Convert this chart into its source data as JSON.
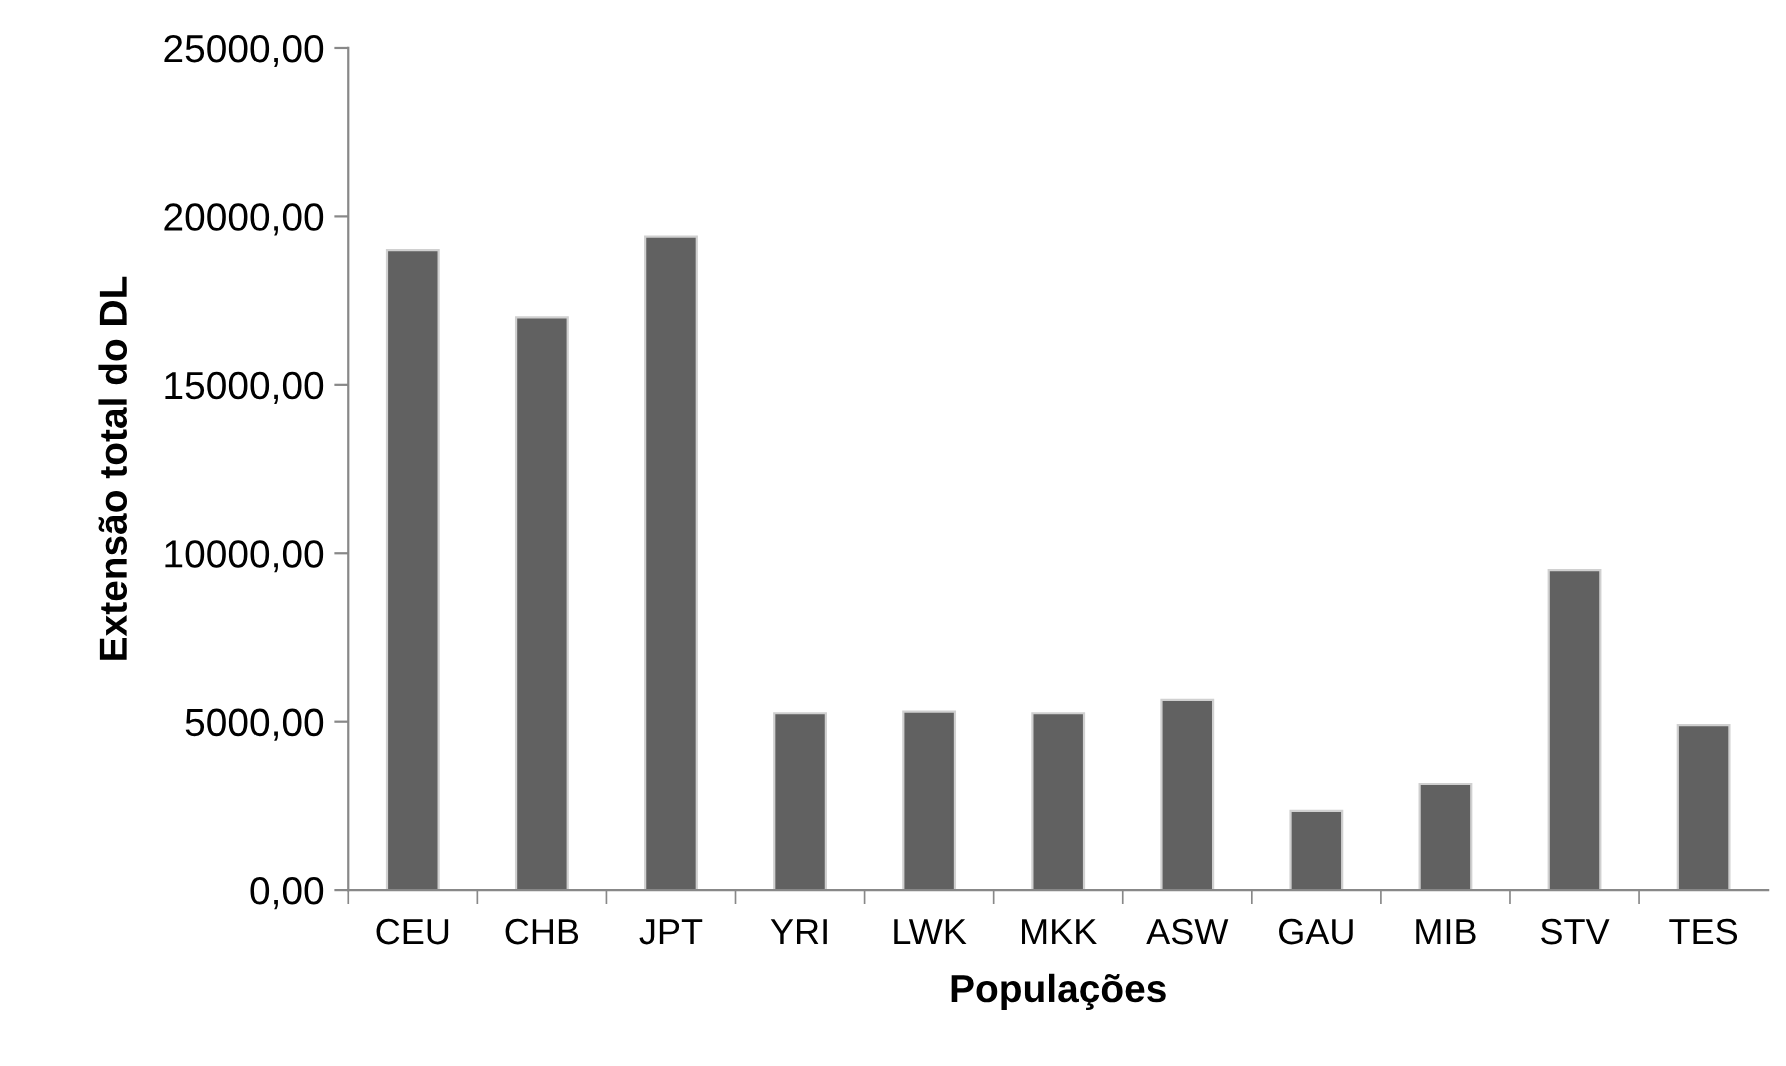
{
  "chart_data": {
    "type": "bar",
    "xlabel": "Populações",
    "ylabel": "Extensão total do DL",
    "categories": [
      "CEU",
      "CHB",
      "JPT",
      "YRI",
      "LWK",
      "MKK",
      "ASW",
      "GAU",
      "MIB",
      "STV",
      "TES"
    ],
    "values": [
      19000,
      17000,
      19400,
      5250,
      5300,
      5250,
      5650,
      2350,
      3150,
      9500,
      4900
    ],
    "color": "#616161",
    "ylim": [
      0,
      25000
    ],
    "yticks": [
      {
        "value": 0,
        "label": "0,00"
      },
      {
        "value": 5000,
        "label": "5000,00"
      },
      {
        "value": 10000,
        "label": "10000,00"
      },
      {
        "value": 15000,
        "label": "15000,00"
      },
      {
        "value": 20000,
        "label": "20000,00"
      },
      {
        "value": 25000,
        "label": "25000,00"
      }
    ],
    "grid": false,
    "legend": false
  }
}
